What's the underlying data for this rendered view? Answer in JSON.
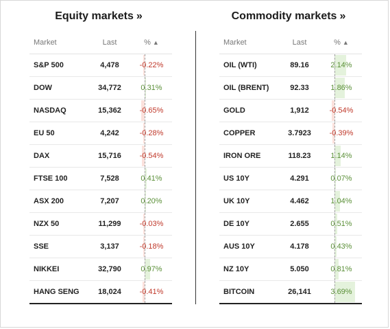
{
  "equity": {
    "title": "Equity markets",
    "title_chevron": "»",
    "headers": {
      "market": "Market",
      "last": "Last",
      "pct": "%",
      "sort": "▲"
    },
    "rows": [
      {
        "market": "S&P 500",
        "last": "4,478",
        "change": "-0.22%",
        "value": -0.22
      },
      {
        "market": "DOW",
        "last": "34,772",
        "change": "0.31%",
        "value": 0.31
      },
      {
        "market": "NASDAQ",
        "last": "15,362",
        "change": "-0.65%",
        "value": -0.65
      },
      {
        "market": "EU 50",
        "last": "4,242",
        "change": "-0.28%",
        "value": -0.28
      },
      {
        "market": "DAX",
        "last": "15,716",
        "change": "-0.54%",
        "value": -0.54
      },
      {
        "market": "FTSE 100",
        "last": "7,528",
        "change": "0.41%",
        "value": 0.41
      },
      {
        "market": "ASX 200",
        "last": "7,207",
        "change": "0.20%",
        "value": 0.2
      },
      {
        "market": "NZX 50",
        "last": "11,299",
        "change": "-0.03%",
        "value": -0.03
      },
      {
        "market": "SSE",
        "last": "3,137",
        "change": "-0.18%",
        "value": -0.18
      },
      {
        "market": "NIKKEI",
        "last": "32,790",
        "change": "0.97%",
        "value": 0.97
      },
      {
        "market": "HANG SENG",
        "last": "18,024",
        "change": "-0.41%",
        "value": -0.41
      }
    ]
  },
  "commodity": {
    "title": "Commodity markets",
    "title_chevron": "»",
    "headers": {
      "market": "Market",
      "last": "Last",
      "pct": "%",
      "sort": "▲"
    },
    "rows": [
      {
        "market": "OIL (WTI)",
        "last": "89.16",
        "change": "2.14%",
        "value": 2.14
      },
      {
        "market": "OIL (BRENT)",
        "last": "92.33",
        "change": "1.86%",
        "value": 1.86
      },
      {
        "market": "GOLD",
        "last": "1,912",
        "change": "-0.54%",
        "value": -0.54
      },
      {
        "market": "COPPER",
        "last": "3.7923",
        "change": "-0.39%",
        "value": -0.39
      },
      {
        "market": "IRON ORE",
        "last": "118.23",
        "change": "1.14%",
        "value": 1.14
      },
      {
        "market": "US 10Y",
        "last": "4.291",
        "change": "0.07%",
        "value": 0.07
      },
      {
        "market": "UK 10Y",
        "last": "4.462",
        "change": "1.04%",
        "value": 1.04
      },
      {
        "market": "DE 10Y",
        "last": "2.655",
        "change": "0.51%",
        "value": 0.51
      },
      {
        "market": "AUS 10Y",
        "last": "4.178",
        "change": "0.43%",
        "value": 0.43
      },
      {
        "market": "NZ 10Y",
        "last": "5.050",
        "change": "0.81%",
        "value": 0.81
      },
      {
        "market": "BITCOIN",
        "last": "26,141",
        "change": "3.69%",
        "value": 3.69
      }
    ]
  },
  "colors": {
    "positive_text": "#5a8f37",
    "negative_text": "#c0392b",
    "positive_bar": "#e4f2dc",
    "negative_bar": "#fbe1dc"
  }
}
